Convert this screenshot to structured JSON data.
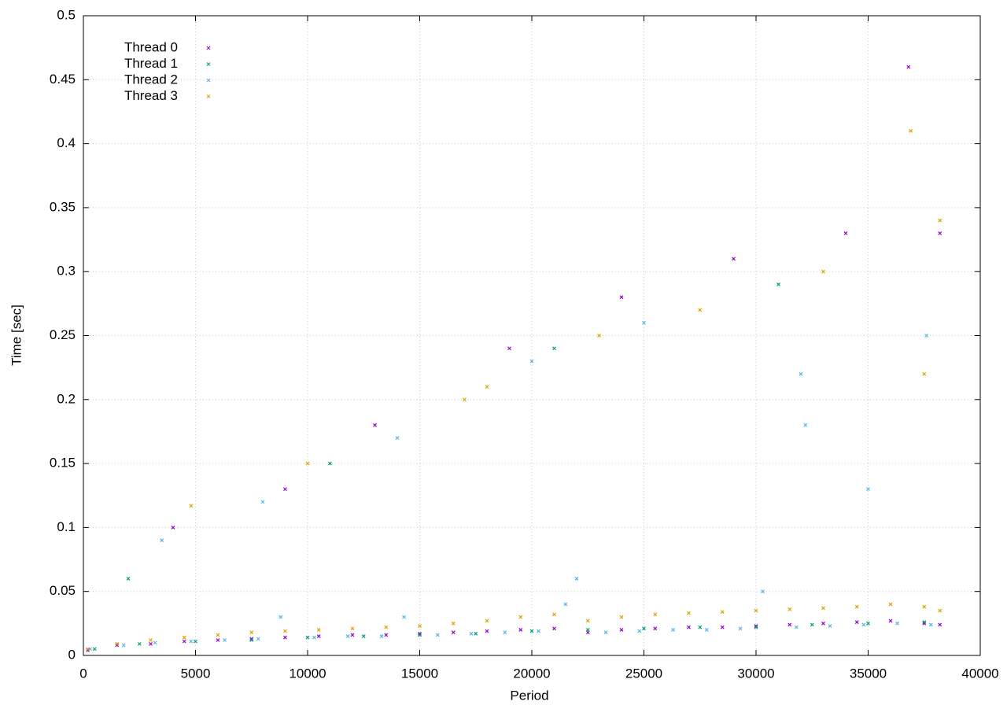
{
  "chart_data": {
    "type": "scatter",
    "xlabel": "Period",
    "ylabel": "Time [sec]",
    "xlim": [
      0,
      40000
    ],
    "ylim": [
      0,
      0.5
    ],
    "xticks": [
      0,
      5000,
      10000,
      15000,
      20000,
      25000,
      30000,
      35000,
      40000
    ],
    "yticks": [
      0,
      0.05,
      0.1,
      0.15,
      0.2,
      0.25,
      0.3,
      0.35,
      0.4,
      0.45,
      0.5
    ],
    "grid": true,
    "legend": "top-left",
    "series": [
      {
        "name": "Thread 0",
        "color": "#9400d3",
        "x": [
          200,
          1500,
          3000,
          4500,
          6000,
          7500,
          9000,
          10500,
          12000,
          13500,
          15000,
          16500,
          18000,
          19500,
          21000,
          22500,
          24000,
          25500,
          27000,
          28500,
          30000,
          31500,
          33000,
          34500,
          36000,
          37500,
          38200,
          4000,
          9000,
          13000,
          19000,
          24000,
          29000,
          34000,
          36800,
          38200
        ],
        "values": [
          0.004,
          0.008,
          0.009,
          0.011,
          0.012,
          0.013,
          0.014,
          0.015,
          0.016,
          0.016,
          0.017,
          0.018,
          0.019,
          0.02,
          0.021,
          0.018,
          0.02,
          0.021,
          0.022,
          0.022,
          0.023,
          0.024,
          0.025,
          0.026,
          0.027,
          0.025,
          0.024,
          0.1,
          0.13,
          0.18,
          0.24,
          0.28,
          0.31,
          0.33,
          0.46,
          0.33
        ]
      },
      {
        "name": "Thread 1",
        "color": "#009e73",
        "x": [
          500,
          2500,
          5000,
          7500,
          10000,
          12500,
          15000,
          17500,
          20000,
          22500,
          25000,
          27500,
          30000,
          32500,
          35000,
          37500,
          2000,
          11000,
          21000,
          31000
        ],
        "values": [
          0.005,
          0.009,
          0.011,
          0.012,
          0.014,
          0.015,
          0.016,
          0.017,
          0.019,
          0.02,
          0.021,
          0.022,
          0.022,
          0.024,
          0.025,
          0.026,
          0.06,
          0.15,
          0.24,
          0.29
        ]
      },
      {
        "name": "Thread 2",
        "color": "#56b4e9",
        "x": [
          300,
          1800,
          3200,
          4800,
          6300,
          7800,
          8800,
          10300,
          11800,
          13300,
          14300,
          15800,
          17300,
          18800,
          20300,
          21500,
          22000,
          23300,
          24800,
          26300,
          27800,
          29300,
          30300,
          31800,
          32200,
          33300,
          34800,
          35000,
          36300,
          37800,
          3500,
          8000,
          14000,
          20000,
          25000,
          32000,
          37600
        ],
        "values": [
          0.005,
          0.008,
          0.01,
          0.011,
          0.012,
          0.013,
          0.03,
          0.014,
          0.015,
          0.015,
          0.03,
          0.016,
          0.017,
          0.018,
          0.019,
          0.04,
          0.06,
          0.018,
          0.019,
          0.02,
          0.02,
          0.021,
          0.05,
          0.022,
          0.18,
          0.023,
          0.024,
          0.13,
          0.025,
          0.024,
          0.09,
          0.12,
          0.17,
          0.23,
          0.26,
          0.22,
          0.25
        ]
      },
      {
        "name": "Thread 3",
        "color": "#e69f00",
        "x": [
          200,
          1500,
          3000,
          4500,
          6000,
          7500,
          9000,
          10500,
          12000,
          13500,
          15000,
          16500,
          18000,
          19500,
          21000,
          22500,
          24000,
          25500,
          27000,
          28500,
          30000,
          31500,
          33000,
          34500,
          36000,
          37500,
          38200,
          4800,
          10000,
          17000,
          18000,
          23000,
          27500,
          33000,
          36900,
          37500,
          38200
        ],
        "values": [
          0.005,
          0.009,
          0.012,
          0.014,
          0.016,
          0.018,
          0.019,
          0.02,
          0.021,
          0.022,
          0.023,
          0.025,
          0.027,
          0.03,
          0.032,
          0.027,
          0.03,
          0.032,
          0.033,
          0.034,
          0.035,
          0.036,
          0.037,
          0.038,
          0.04,
          0.038,
          0.035,
          0.117,
          0.15,
          0.2,
          0.21,
          0.25,
          0.27,
          0.3,
          0.41,
          0.22,
          0.34
        ]
      }
    ]
  }
}
